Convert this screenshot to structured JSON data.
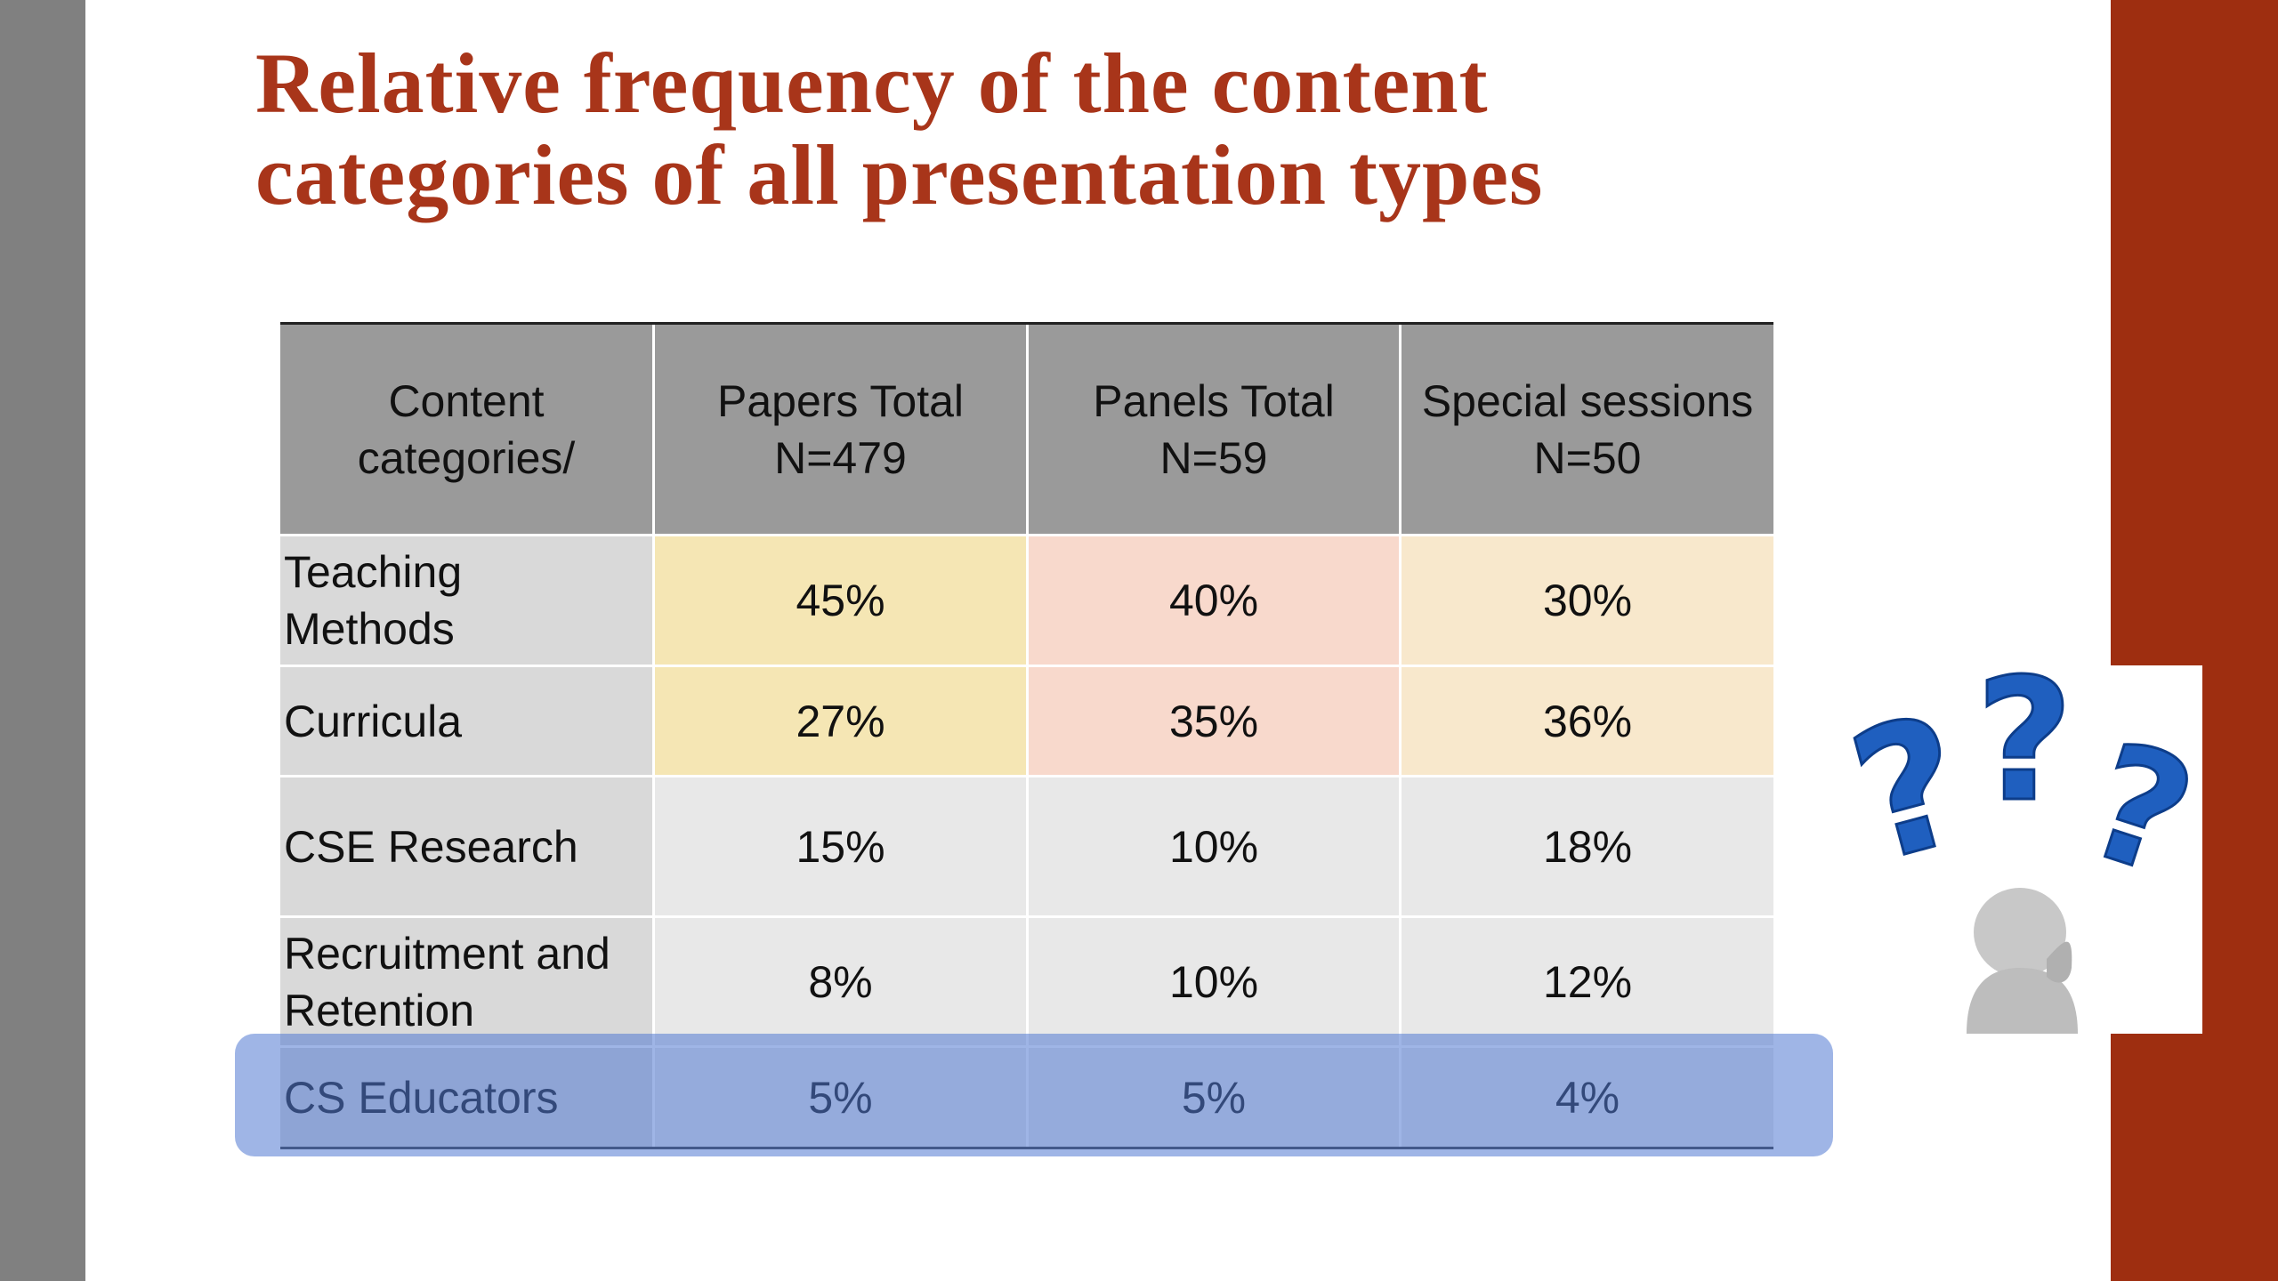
{
  "slide": {
    "title_lines": [
      "Relative frequency of the content",
      "categories of all presentation types"
    ],
    "table": {
      "header": [
        [
          "Content",
          "categories/"
        ],
        [
          "Papers Total",
          "N=479"
        ],
        [
          "Panels Total",
          "N=59"
        ],
        [
          "Special sessions",
          "N=50"
        ]
      ],
      "rows": [
        {
          "label": [
            "Teaching",
            "Methods"
          ],
          "cells": [
            "45%",
            "40%",
            "30%"
          ]
        },
        {
          "label": [
            "Curricula"
          ],
          "cells": [
            "27%",
            "35%",
            "36%"
          ]
        },
        {
          "label": [
            "CSE Research"
          ],
          "cells": [
            "15%",
            "10%",
            "18%"
          ]
        },
        {
          "label": [
            "Recruitment and",
            "Retention"
          ],
          "cells": [
            "8%",
            "10%",
            "12%"
          ]
        },
        {
          "label": [
            "CS Educators"
          ],
          "cells": [
            "5%",
            "5%",
            "4%"
          ]
        }
      ]
    }
  }
}
